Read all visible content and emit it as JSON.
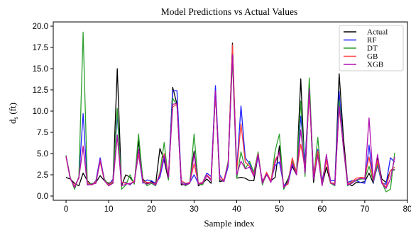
{
  "chart_data": {
    "type": "line",
    "title": "Model Predictions vs Actual Values",
    "xlabel": "Sample index",
    "ylabel_main": "d",
    "ylabel_sub": "s",
    "ylabel_unit": " (ft)",
    "xlim": [
      -3,
      80
    ],
    "ylim": [
      -0.5,
      20.5
    ],
    "xticks": [
      "0",
      "10",
      "20",
      "30",
      "40",
      "50",
      "60",
      "70",
      "80"
    ],
    "yticks": [
      "0.0",
      "2.5",
      "5.0",
      "7.5",
      "10.0",
      "12.5",
      "15.0",
      "17.5",
      "20.0"
    ],
    "grid": false,
    "legend_position": "top-right",
    "x": [
      0,
      1,
      2,
      3,
      4,
      5,
      6,
      7,
      8,
      9,
      10,
      11,
      12,
      13,
      14,
      15,
      16,
      17,
      18,
      19,
      20,
      21,
      22,
      23,
      24,
      25,
      26,
      27,
      28,
      29,
      30,
      31,
      32,
      33,
      34,
      35,
      36,
      37,
      38,
      39,
      40,
      41,
      42,
      43,
      44,
      45,
      46,
      47,
      48,
      49,
      50,
      51,
      52,
      53,
      54,
      55,
      56,
      57,
      58,
      59,
      60,
      61,
      62,
      63,
      64,
      65,
      66,
      67,
      68,
      69,
      70,
      71,
      72,
      73,
      74,
      75,
      76,
      77
    ],
    "series": [
      {
        "name": "Actual",
        "color": "#000000",
        "values": [
          2.2,
          2.0,
          1.5,
          1.2,
          2.7,
          1.8,
          1.3,
          1.6,
          2.4,
          1.8,
          1.5,
          1.7,
          15.0,
          1.2,
          2.5,
          2.2,
          1.5,
          6.5,
          2.0,
          1.5,
          1.7,
          1.4,
          5.6,
          4.2,
          1.9,
          12.8,
          10.8,
          1.3,
          1.4,
          1.6,
          5.3,
          1.2,
          1.5,
          2.0,
          1.5,
          12.5,
          1.7,
          1.8,
          4.0,
          18.0,
          2.1,
          2.2,
          2.1,
          1.8,
          1.8,
          4.8,
          1.5,
          2.5,
          1.8,
          2.2,
          5.9,
          1.0,
          2.0,
          3.5,
          2.5,
          13.8,
          2.5,
          12.5,
          1.6,
          5.2,
          1.3,
          3.4,
          1.5,
          1.5,
          14.4,
          6.9,
          1.5,
          1.2,
          1.6,
          1.6,
          1.7,
          2.7,
          1.5,
          4.6,
          2.0,
          1.6,
          3.0,
          3.1
        ]
      },
      {
        "name": "RF",
        "color": "#1f1fff",
        "values": [
          4.7,
          2.0,
          1.2,
          2.1,
          9.7,
          1.4,
          1.3,
          1.8,
          4.5,
          1.9,
          1.3,
          2.0,
          9.6,
          1.5,
          1.6,
          1.3,
          1.8,
          4.9,
          1.5,
          1.9,
          1.8,
          1.5,
          2.2,
          4.5,
          2.3,
          12.4,
          12.4,
          1.8,
          1.4,
          1.6,
          2.5,
          1.5,
          1.6,
          2.7,
          2.3,
          13.0,
          2.5,
          1.7,
          3.5,
          17.0,
          3.2,
          10.6,
          4.5,
          3.8,
          2.5,
          4.6,
          1.8,
          2.5,
          1.8,
          3.6,
          4.0,
          1.3,
          1.4,
          3.7,
          2.7,
          9.4,
          4.1,
          12.5,
          2.7,
          5.5,
          1.8,
          4.2,
          1.8,
          1.8,
          12.3,
          5.6,
          1.6,
          1.8,
          1.8,
          1.6,
          1.5,
          6.0,
          1.6,
          3.6,
          1.5,
          1.4,
          4.5,
          4.0
        ]
      },
      {
        "name": "DT",
        "color": "#2ca02c",
        "values": [
          4.8,
          2.2,
          0.8,
          2.3,
          19.3,
          1.3,
          1.5,
          1.5,
          4.2,
          2.0,
          1.3,
          1.6,
          10.3,
          0.8,
          1.3,
          2.5,
          1.4,
          7.3,
          1.8,
          1.2,
          1.5,
          1.2,
          2.8,
          6.3,
          1.9,
          11.5,
          10.7,
          1.6,
          1.2,
          1.5,
          7.3,
          1.4,
          1.3,
          2.5,
          1.9,
          12.2,
          1.9,
          1.8,
          4.1,
          16.1,
          2.1,
          5.2,
          3.2,
          4.1,
          2.8,
          5.2,
          1.3,
          2.7,
          1.6,
          5.3,
          7.3,
          0.8,
          1.8,
          4.2,
          2.6,
          11.2,
          2.3,
          13.9,
          2.0,
          6.9,
          1.3,
          4.3,
          1.5,
          1.2,
          11.3,
          5.7,
          1.2,
          1.6,
          1.8,
          2.0,
          2.0,
          3.5,
          1.7,
          3.8,
          1.6,
          0.5,
          0.8,
          5.1
        ]
      },
      {
        "name": "GB",
        "color": "#ff3f3f",
        "values": [
          4.6,
          2.0,
          1.2,
          2.1,
          5.9,
          1.5,
          1.3,
          1.7,
          4.0,
          1.8,
          1.3,
          1.8,
          7.0,
          1.6,
          1.5,
          1.4,
          1.8,
          5.0,
          1.8,
          1.6,
          1.6,
          1.4,
          2.6,
          5.0,
          2.4,
          10.5,
          10.8,
          1.8,
          1.5,
          1.6,
          3.8,
          1.5,
          1.6,
          2.5,
          2.0,
          12.0,
          2.2,
          1.9,
          3.8,
          17.8,
          3.0,
          8.5,
          4.0,
          3.5,
          2.5,
          5.0,
          1.6,
          2.8,
          1.8,
          4.3,
          5.0,
          1.1,
          1.4,
          4.5,
          2.8,
          6.1,
          3.3,
          12.0,
          2.4,
          5.3,
          1.4,
          4.2,
          1.5,
          1.5,
          10.3,
          5.9,
          1.4,
          1.7,
          2.1,
          2.2,
          2.2,
          4.6,
          1.8,
          4.2,
          1.7,
          1.0,
          3.0,
          3.4
        ]
      },
      {
        "name": "XGB",
        "color": "#b010b0",
        "values": [
          4.7,
          2.1,
          1.0,
          2.2,
          5.8,
          1.3,
          1.4,
          1.5,
          4.3,
          1.8,
          1.2,
          1.5,
          7.2,
          1.2,
          1.4,
          1.5,
          1.6,
          5.5,
          1.6,
          1.4,
          1.6,
          1.3,
          2.5,
          4.8,
          2.2,
          10.8,
          10.9,
          1.5,
          1.3,
          1.5,
          4.9,
          1.4,
          1.5,
          2.4,
          1.8,
          12.4,
          2.0,
          1.7,
          3.9,
          16.6,
          2.5,
          4.1,
          3.2,
          3.4,
          2.3,
          4.9,
          1.5,
          2.6,
          1.6,
          3.9,
          5.2,
          1.0,
          1.6,
          3.9,
          2.5,
          7.8,
          2.7,
          12.6,
          2.0,
          4.8,
          1.2,
          4.9,
          1.6,
          1.3,
          10.6,
          5.8,
          1.3,
          1.5,
          1.9,
          2.1,
          2.0,
          9.2,
          1.8,
          4.9,
          1.5,
          0.9,
          2.0,
          4.6
        ]
      }
    ]
  }
}
